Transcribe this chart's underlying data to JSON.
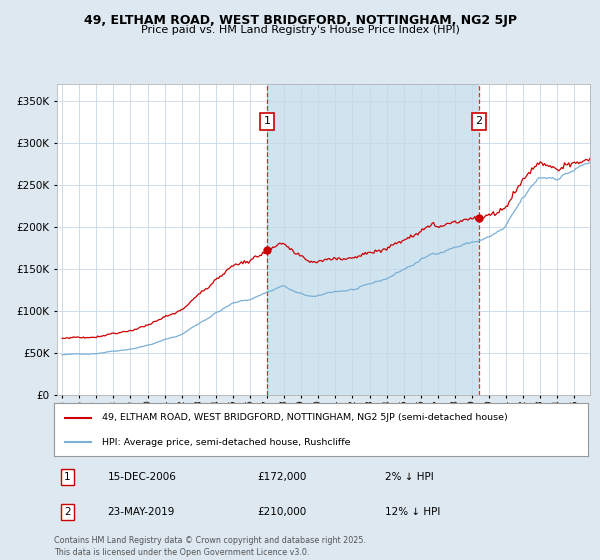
{
  "title_line1": "49, ELTHAM ROAD, WEST BRIDGFORD, NOTTINGHAM, NG2 5JP",
  "title_line2": "Price paid vs. HM Land Registry's House Price Index (HPI)",
  "legend_entry1": "49, ELTHAM ROAD, WEST BRIDGFORD, NOTTINGHAM, NG2 5JP (semi-detached house)",
  "legend_entry2": "HPI: Average price, semi-detached house, Rushcliffe",
  "sale1_date": "15-DEC-2006",
  "sale1_price": 172000,
  "sale1_t": 2007.0,
  "sale2_date": "23-MAY-2019",
  "sale2_price": 210000,
  "sale2_t": 2019.417,
  "sale1_pct": "2% ↓ HPI",
  "sale2_pct": "12% ↓ HPI",
  "copyright": "Contains HM Land Registry data © Crown copyright and database right 2025.\nThis data is licensed under the Open Government Licence v3.0.",
  "hpi_color": "#7bafd4",
  "price_color": "#cc0000",
  "background_color": "#dde8f0",
  "plot_bg_color": "#ffffff",
  "shade_color": "#d0e4f0",
  "vline_color": "#cc0000",
  "ylim_min": 0,
  "ylim_max": 370000,
  "yticks": [
    0,
    50000,
    100000,
    150000,
    200000,
    250000,
    300000,
    350000
  ],
  "xmin": 1994.7,
  "xmax": 2025.9,
  "year_start": 1995,
  "year_end": 2026
}
